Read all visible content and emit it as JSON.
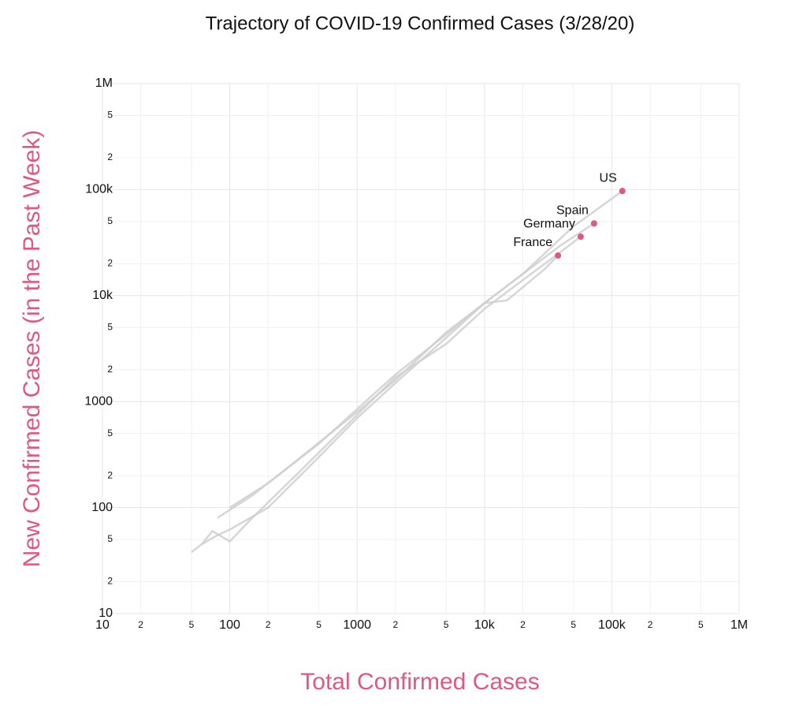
{
  "chart_data": {
    "type": "line",
    "title": "Trajectory of COVID-19 Confirmed Cases (3/28/20)",
    "x_label": "Total Confirmed Cases",
    "y_label": "New Confirmed Cases (in the Past Week)",
    "log_x": true,
    "log_y": true,
    "grid": true,
    "line_color": "#cfcfcf",
    "point_color": "#e05780",
    "label_color": "#e05780",
    "xlim": [
      10,
      1000000
    ],
    "ylim": [
      10,
      1000000
    ],
    "xticks": [
      10,
      {
        "value": 20,
        "label": "2"
      },
      {
        "value": 50,
        "label": "5"
      },
      100,
      {
        "value": 200,
        "label": "2"
      },
      {
        "value": 500,
        "label": "5"
      },
      1000,
      {
        "value": 2000,
        "label": "2"
      },
      {
        "value": 5000,
        "label": "5"
      },
      {
        "value": 10000,
        "label": "10k"
      },
      {
        "value": 20000,
        "label": "2"
      },
      {
        "value": 50000,
        "label": "5"
      },
      {
        "value": 100000,
        "label": "100k"
      },
      {
        "value": 200000,
        "label": "2"
      },
      {
        "value": 500000,
        "label": "5"
      },
      {
        "value": 1000000,
        "label": "1M"
      }
    ],
    "yticks": [
      10,
      {
        "value": 20,
        "label": "2"
      },
      {
        "value": 50,
        "label": "5"
      },
      100,
      {
        "value": 200,
        "label": "2"
      },
      {
        "value": 500,
        "label": "5"
      },
      1000,
      {
        "value": 2000,
        "label": "2"
      },
      {
        "value": 5000,
        "label": "5"
      },
      {
        "value": 10000,
        "label": "10k"
      },
      {
        "value": 20000,
        "label": "2"
      },
      {
        "value": 50000,
        "label": "5"
      },
      {
        "value": 100000,
        "label": "100k"
      },
      {
        "value": 200000,
        "label": "2"
      },
      {
        "value": 500000,
        "label": "5"
      },
      {
        "value": 1000000,
        "label": "1M"
      }
    ],
    "series": [
      {
        "name": "US",
        "x": [
          50,
          60,
          80,
          100,
          200,
          500,
          1000,
          2000,
          5000,
          10000,
          20000,
          50000,
          121000
        ],
        "values": [
          38,
          45,
          55,
          62,
          100,
          300,
          700,
          1500,
          4000,
          8500,
          16000,
          45000,
          97000
        ]
      },
      {
        "name": "Spain",
        "x": [
          80,
          150,
          300,
          1000,
          2000,
          5000,
          10000,
          20000,
          40000,
          72600
        ],
        "values": [
          80,
          130,
          250,
          800,
          1600,
          4500,
          8500,
          16000,
          30000,
          48000
        ]
      },
      {
        "name": "Germany",
        "x": [
          60,
          73,
          100,
          150,
          300,
          1000,
          2000,
          5000,
          10000,
          20000,
          40000,
          57000
        ],
        "values": [
          45,
          60,
          48,
          80,
          180,
          750,
          1700,
          3500,
          7500,
          14000,
          26000,
          36000
        ]
      },
      {
        "name": "France",
        "x": [
          100,
          200,
          500,
          1000,
          2000,
          5000,
          10000,
          15000,
          20000,
          30000,
          37800
        ],
        "values": [
          100,
          170,
          400,
          850,
          1800,
          4300,
          8500,
          9000,
          12000,
          18000,
          23900
        ]
      }
    ]
  }
}
